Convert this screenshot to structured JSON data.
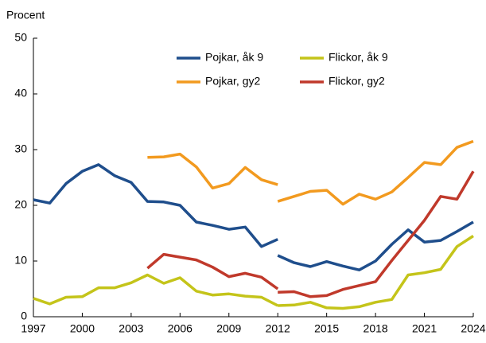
{
  "chart_data": {
    "type": "line",
    "y_label": "Procent",
    "x": [
      1997,
      1998,
      1999,
      2000,
      2001,
      2002,
      2003,
      2004,
      2005,
      2006,
      2007,
      2008,
      2009,
      2010,
      2011,
      2012,
      2012,
      2012,
      2013,
      2014,
      2015,
      2016,
      2017,
      2018,
      2019,
      2020,
      2021,
      2022,
      2023,
      2024
    ],
    "series": [
      {
        "name": "Pojkar, åk 9",
        "color": "#1f4e8c",
        "values": [
          21.0,
          20.4,
          23.9,
          26.1,
          27.3,
          25.3,
          24.1,
          20.7,
          20.6,
          20.0,
          17.0,
          16.4,
          15.7,
          16.1,
          12.6,
          13.9,
          null,
          11.0,
          9.7,
          9.0,
          9.9,
          9.1,
          8.4,
          10.0,
          13.0,
          15.6,
          13.4,
          13.7,
          15.3,
          17.0
        ]
      },
      {
        "name": "Flickor, åk 9",
        "color": "#c4c41a",
        "values": [
          3.3,
          2.3,
          3.5,
          3.6,
          5.2,
          5.2,
          6.1,
          7.5,
          6.0,
          7.0,
          4.6,
          3.9,
          4.1,
          3.7,
          3.5,
          2.0,
          null,
          2.0,
          2.1,
          2.6,
          1.6,
          1.5,
          1.8,
          2.6,
          3.1,
          7.5,
          7.9,
          8.5,
          12.6,
          14.5
        ]
      },
      {
        "name": "Pojkar, gy2",
        "color": "#f29a1f",
        "values": [
          null,
          null,
          null,
          null,
          null,
          null,
          null,
          28.6,
          28.7,
          29.2,
          26.9,
          23.1,
          23.9,
          26.8,
          24.6,
          23.7,
          null,
          20.7,
          21.6,
          22.5,
          22.7,
          20.2,
          22.0,
          21.1,
          22.4,
          25.0,
          27.7,
          27.3,
          30.4,
          31.5
        ]
      },
      {
        "name": "Flickor, gy2",
        "color": "#c0392b",
        "values": [
          null,
          null,
          null,
          null,
          null,
          null,
          null,
          8.7,
          11.2,
          10.7,
          10.2,
          8.9,
          7.2,
          7.8,
          7.1,
          5.0,
          null,
          4.4,
          4.5,
          3.6,
          3.8,
          4.9,
          5.6,
          6.3,
          10.1,
          13.7,
          17.3,
          21.6,
          21.1,
          26.1
        ]
      }
    ],
    "xlim": [
      1997,
      2024
    ],
    "xticks": [
      1997,
      2000,
      2003,
      2006,
      2009,
      2012,
      2015,
      2018,
      2021,
      2024
    ],
    "ylim": [
      0,
      50
    ],
    "yticks": [
      0,
      10,
      20,
      30,
      40,
      50
    ],
    "grid": false
  }
}
